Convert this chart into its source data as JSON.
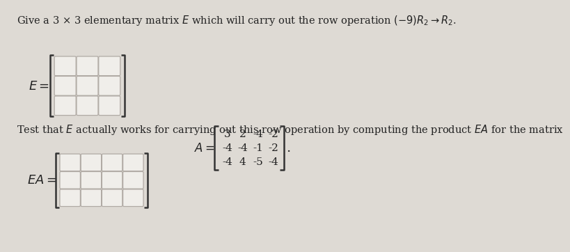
{
  "title_text": "Give a 3 × 3 elementary matrix $E$ which will carry out the row operation $(-9)R_2 \\rightarrow R_2$.",
  "E_label": "$E =$",
  "test_text": "Test that $E$ actually works for carrying out this row operation by computing the product $EA$ for the matrix",
  "A_label": "$A =$",
  "A_matrix": [
    [
      3,
      2,
      -4,
      -2
    ],
    [
      -4,
      -4,
      -1,
      -2
    ],
    [
      -4,
      4,
      -5,
      -4
    ]
  ],
  "EA_label": "$EA =$",
  "E_rows": 3,
  "E_cols": 3,
  "EA_rows": 3,
  "EA_cols": 4,
  "bg_color": "#dedad4",
  "box_facecolor": "#f0eeea",
  "box_edgecolor": "#b0aaa4",
  "text_color": "#222222",
  "bracket_color": "#333333"
}
